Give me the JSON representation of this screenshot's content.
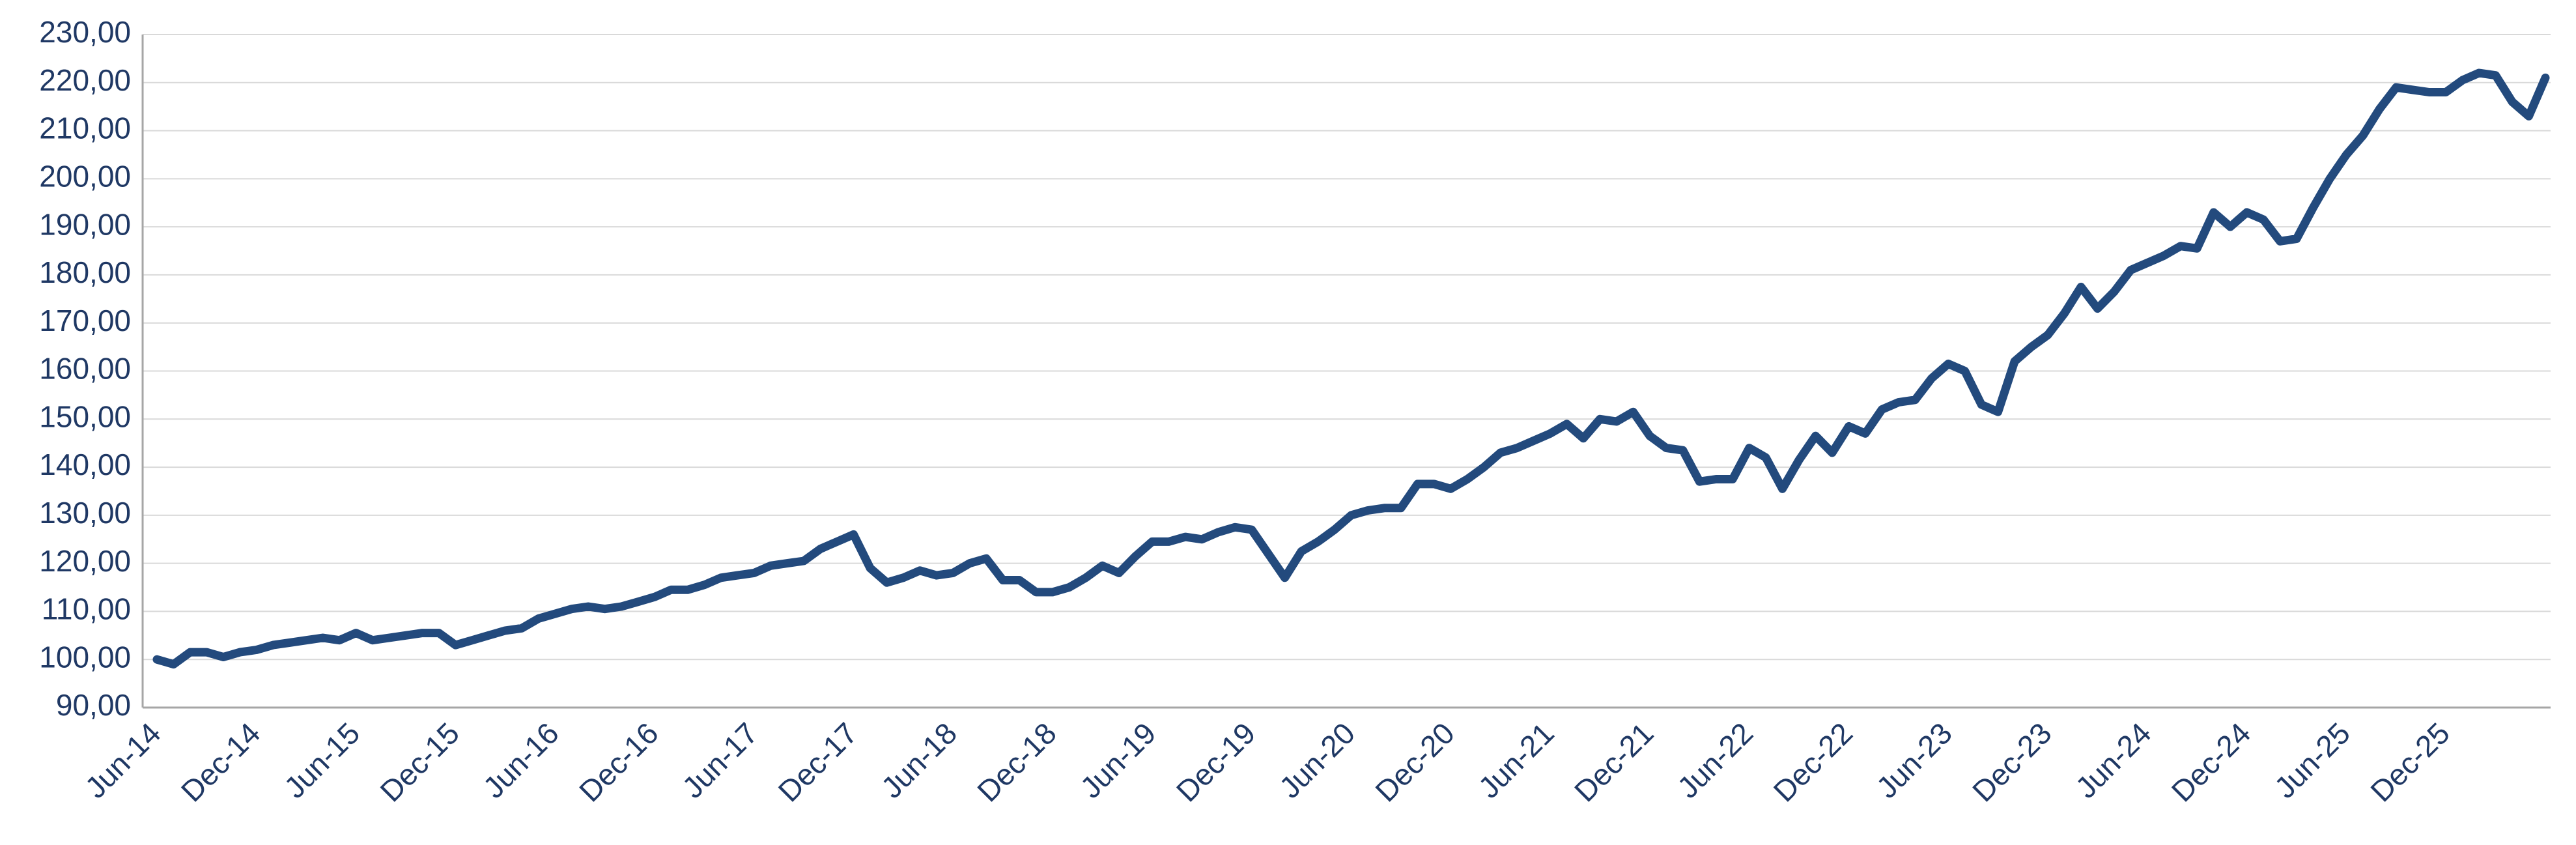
{
  "chart_data": {
    "type": "line",
    "categories": [
      "Jun-14",
      null,
      null,
      null,
      null,
      null,
      "Dec-14",
      null,
      null,
      null,
      null,
      null,
      "Jun-15",
      null,
      null,
      null,
      null,
      null,
      "Dec-15",
      null,
      null,
      null,
      null,
      null,
      "Jun-16",
      null,
      null,
      null,
      null,
      null,
      "Dec-16",
      null,
      null,
      null,
      null,
      null,
      "Jun-17",
      null,
      null,
      null,
      null,
      null,
      "Dec-17",
      null,
      null,
      null,
      null,
      null,
      "Jun-18",
      null,
      null,
      null,
      null,
      null,
      "Dec-18",
      null,
      null,
      null,
      null,
      null,
      "Jun-19",
      null,
      null,
      null,
      null,
      null,
      "Dec-19",
      null,
      null,
      null,
      null,
      null,
      "Jun-20",
      null,
      null,
      null,
      null,
      null,
      "Dec-20",
      null,
      null,
      null,
      null,
      null,
      "Jun-21",
      null,
      null,
      null,
      null,
      null,
      "Dec-21",
      null,
      null,
      null,
      null,
      null,
      "Jun-22",
      null,
      null,
      null,
      null,
      null,
      "Dec-22",
      null,
      null,
      null,
      null,
      null,
      "Jun-23",
      null,
      null,
      null,
      null,
      null,
      "Dec-23",
      null,
      null,
      null,
      null,
      null,
      "Jun-24",
      null,
      null,
      null,
      null,
      null,
      "Dec-24",
      null,
      null,
      null,
      null,
      null,
      "Jun-25",
      null,
      null,
      null,
      null,
      null,
      "Dec-25",
      null,
      null,
      null,
      null,
      null,
      null
    ],
    "values": [
      100,
      99,
      101.5,
      101.5,
      100.5,
      101.5,
      102,
      103,
      103.5,
      104,
      104.5,
      104,
      105.5,
      104,
      104.5,
      105,
      105.5,
      105.5,
      103,
      104,
      105,
      106,
      106.5,
      108.5,
      109.5,
      110.5,
      111,
      110.5,
      111,
      112,
      113,
      114.5,
      114.5,
      115.5,
      117,
      117.5,
      118,
      119.5,
      120,
      120.5,
      123,
      124.5,
      126,
      119,
      116,
      117,
      118.5,
      117.5,
      118,
      120,
      121,
      116.5,
      116.5,
      114,
      114,
      115,
      117,
      119.5,
      118,
      121.5,
      124.5,
      124.5,
      125.5,
      125,
      126.5,
      127.5,
      127,
      122,
      117,
      122.5,
      124.5,
      127,
      130,
      131,
      131.5,
      131.5,
      136.5,
      136.5,
      135.5,
      137.5,
      140,
      143,
      144,
      145.5,
      147,
      149,
      146,
      150,
      149.5,
      151.5,
      146.5,
      144,
      143.5,
      137,
      137.5,
      137.5,
      144,
      142,
      135.5,
      141.5,
      146.5,
      143,
      148.5,
      147,
      152,
      153.5,
      154,
      158.5,
      161.5,
      160,
      153,
      151.5,
      162,
      165,
      167.5,
      172,
      177.5,
      173,
      176.5,
      181,
      182.5,
      184,
      186,
      185.5,
      193,
      190,
      193,
      191.5,
      187,
      187.5,
      194,
      200,
      205,
      209,
      214.5,
      219,
      218.5,
      218,
      218,
      220.5,
      222,
      221.5,
      216,
      213,
      221
    ],
    "color": "#234a7d",
    "ylim": [
      90,
      230
    ],
    "yticks": [
      {
        "value": 90,
        "label": "90,00"
      },
      {
        "value": 100,
        "label": "100,00"
      },
      {
        "value": 110,
        "label": "110,00"
      },
      {
        "value": 120,
        "label": "120,00"
      },
      {
        "value": 130,
        "label": "130,00"
      },
      {
        "value": 140,
        "label": "140,00"
      },
      {
        "value": 150,
        "label": "150,00"
      },
      {
        "value": 160,
        "label": "160,00"
      },
      {
        "value": 170,
        "label": "170,00"
      },
      {
        "value": 180,
        "label": "180,00"
      },
      {
        "value": 190,
        "label": "190,00"
      },
      {
        "value": 200,
        "label": "200,00"
      },
      {
        "value": 210,
        "label": "210,00"
      },
      {
        "value": 220,
        "label": "220,00"
      },
      {
        "value": 230,
        "label": "230,00"
      }
    ],
    "grid": true
  }
}
